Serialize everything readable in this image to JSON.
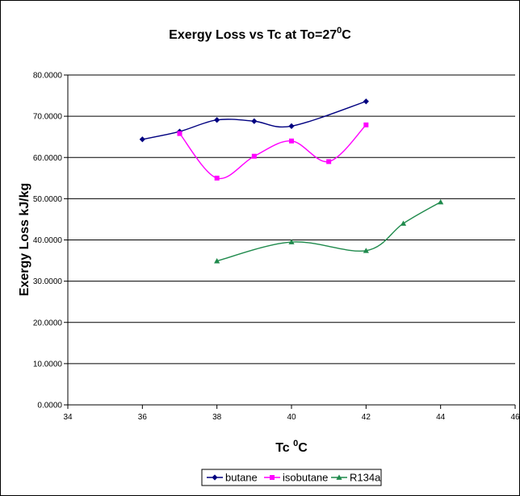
{
  "chart_data": {
    "type": "line",
    "title": {
      "main": "Exergy Loss vs Tc at To=27",
      "sup": "0",
      "tail": "C"
    },
    "xlabel": {
      "main": "Tc ",
      "sup": "0",
      "tail": "C"
    },
    "ylabel": "Exergy Loss kJ/kg",
    "xlim": [
      34,
      46
    ],
    "ylim": [
      0,
      80
    ],
    "x_ticks": [
      "34",
      "36",
      "38",
      "40",
      "42",
      "44",
      "46"
    ],
    "y_ticks": [
      "0.0000",
      "10.0000",
      "20.0000",
      "30.0000",
      "40.0000",
      "50.0000",
      "60.0000",
      "70.0000",
      "80.0000"
    ],
    "grid": "horizontal",
    "legend_position": "bottom",
    "series": [
      {
        "name": "butane",
        "color": "#000080",
        "marker": "diamond",
        "x": [
          36,
          37,
          38,
          39,
          40,
          42
        ],
        "y": [
          64.4,
          66.3,
          69.1,
          68.8,
          67.6,
          73.6
        ]
      },
      {
        "name": "isobutane",
        "color": "#ff00ff",
        "marker": "square",
        "x": [
          37,
          38,
          39,
          40,
          41,
          42
        ],
        "y": [
          65.8,
          55.0,
          60.3,
          64.0,
          59.0,
          67.9
        ]
      },
      {
        "name": "R134a",
        "color": "#1f8a4c",
        "marker": "triangle",
        "x": [
          38,
          40,
          42,
          43,
          44
        ],
        "y": [
          34.9,
          39.5,
          37.4,
          44.0,
          49.2
        ]
      }
    ]
  }
}
